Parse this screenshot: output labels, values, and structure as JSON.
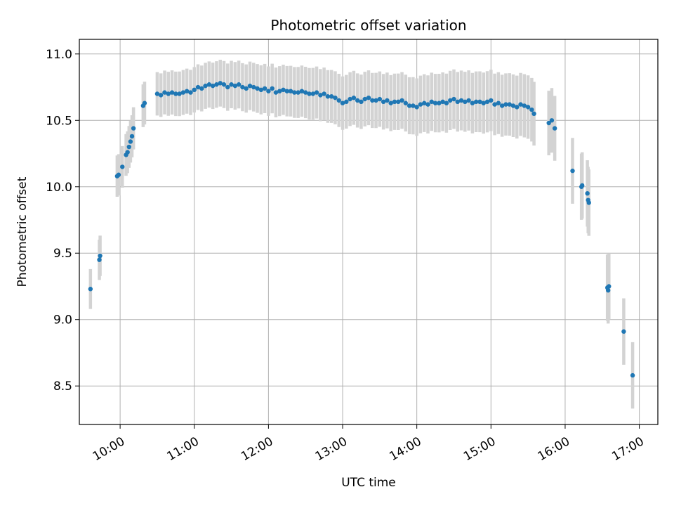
{
  "chart_data": {
    "type": "scatter",
    "title": "Photometric offset variation",
    "xlabel": "UTC time",
    "ylabel": "Photometric offset",
    "x_unit": "hours (UTC)",
    "xlim": [
      9.45,
      17.25
    ],
    "ylim": [
      8.21,
      11.11
    ],
    "x_ticks": [
      {
        "value": 10,
        "label": "10:00"
      },
      {
        "value": 11,
        "label": "11:00"
      },
      {
        "value": 12,
        "label": "12:00"
      },
      {
        "value": 13,
        "label": "13:00"
      },
      {
        "value": 14,
        "label": "14:00"
      },
      {
        "value": 15,
        "label": "15:00"
      },
      {
        "value": 16,
        "label": "16:00"
      },
      {
        "value": 17,
        "label": "17:00"
      }
    ],
    "y_ticks": [
      {
        "value": 8.5,
        "label": "8.5"
      },
      {
        "value": 9.0,
        "label": "9.0"
      },
      {
        "value": 9.5,
        "label": "9.5"
      },
      {
        "value": 10.0,
        "label": "10.0"
      },
      {
        "value": 10.5,
        "label": "10.5"
      },
      {
        "value": 11.0,
        "label": "11.0"
      }
    ],
    "grid": true,
    "colors": {
      "points": "#1f77b4",
      "errorbars": "#d3d3d3",
      "grid": "#b0b0b0"
    },
    "error_half_width_range": [
      0.15,
      0.25
    ],
    "series": [
      {
        "points": [
          [
            9.6,
            9.23
          ],
          [
            9.72,
            9.45
          ],
          [
            9.73,
            9.48
          ],
          [
            9.96,
            10.08
          ],
          [
            9.98,
            10.09
          ],
          [
            10.03,
            10.15
          ],
          [
            10.08,
            10.24
          ],
          [
            10.1,
            10.26
          ],
          [
            10.12,
            10.3
          ],
          [
            10.14,
            10.34
          ],
          [
            10.16,
            10.38
          ],
          [
            10.18,
            10.44
          ],
          [
            10.31,
            10.61
          ],
          [
            10.33,
            10.63
          ],
          [
            10.5,
            10.7
          ],
          [
            10.55,
            10.69
          ],
          [
            10.6,
            10.71
          ],
          [
            10.65,
            10.7
          ],
          [
            10.7,
            10.71
          ],
          [
            10.75,
            10.7
          ],
          [
            10.8,
            10.7
          ],
          [
            10.85,
            10.71
          ],
          [
            10.9,
            10.72
          ],
          [
            10.95,
            10.71
          ],
          [
            11.0,
            10.73
          ],
          [
            11.05,
            10.75
          ],
          [
            11.1,
            10.74
          ],
          [
            11.15,
            10.76
          ],
          [
            11.2,
            10.77
          ],
          [
            11.25,
            10.76
          ],
          [
            11.3,
            10.77
          ],
          [
            11.35,
            10.78
          ],
          [
            11.4,
            10.77
          ],
          [
            11.45,
            10.75
          ],
          [
            11.5,
            10.77
          ],
          [
            11.55,
            10.76
          ],
          [
            11.6,
            10.77
          ],
          [
            11.65,
            10.75
          ],
          [
            11.7,
            10.74
          ],
          [
            11.75,
            10.76
          ],
          [
            11.8,
            10.75
          ],
          [
            11.85,
            10.74
          ],
          [
            11.9,
            10.73
          ],
          [
            11.95,
            10.74
          ],
          [
            12.0,
            10.72
          ],
          [
            12.05,
            10.74
          ],
          [
            12.1,
            10.71
          ],
          [
            12.15,
            10.72
          ],
          [
            12.2,
            10.73
          ],
          [
            12.25,
            10.72
          ],
          [
            12.3,
            10.72
          ],
          [
            12.35,
            10.71
          ],
          [
            12.4,
            10.71
          ],
          [
            12.45,
            10.72
          ],
          [
            12.5,
            10.71
          ],
          [
            12.55,
            10.7
          ],
          [
            12.6,
            10.7
          ],
          [
            12.65,
            10.71
          ],
          [
            12.7,
            10.69
          ],
          [
            12.75,
            10.7
          ],
          [
            12.8,
            10.68
          ],
          [
            12.85,
            10.68
          ],
          [
            12.9,
            10.67
          ],
          [
            12.95,
            10.65
          ],
          [
            13.0,
            10.63
          ],
          [
            13.05,
            10.64
          ],
          [
            13.1,
            10.66
          ],
          [
            13.15,
            10.67
          ],
          [
            13.2,
            10.65
          ],
          [
            13.25,
            10.64
          ],
          [
            13.3,
            10.66
          ],
          [
            13.35,
            10.67
          ],
          [
            13.4,
            10.65
          ],
          [
            13.45,
            10.65
          ],
          [
            13.5,
            10.66
          ],
          [
            13.55,
            10.64
          ],
          [
            13.6,
            10.65
          ],
          [
            13.65,
            10.63
          ],
          [
            13.7,
            10.64
          ],
          [
            13.75,
            10.64
          ],
          [
            13.8,
            10.65
          ],
          [
            13.85,
            10.63
          ],
          [
            13.9,
            10.61
          ],
          [
            13.95,
            10.61
          ],
          [
            14.0,
            10.6
          ],
          [
            14.05,
            10.62
          ],
          [
            14.1,
            10.63
          ],
          [
            14.15,
            10.62
          ],
          [
            14.2,
            10.64
          ],
          [
            14.25,
            10.63
          ],
          [
            14.3,
            10.63
          ],
          [
            14.35,
            10.64
          ],
          [
            14.4,
            10.63
          ],
          [
            14.45,
            10.65
          ],
          [
            14.5,
            10.66
          ],
          [
            14.55,
            10.64
          ],
          [
            14.6,
            10.65
          ],
          [
            14.65,
            10.64
          ],
          [
            14.7,
            10.65
          ],
          [
            14.75,
            10.63
          ],
          [
            14.8,
            10.64
          ],
          [
            14.85,
            10.64
          ],
          [
            14.9,
            10.63
          ],
          [
            14.95,
            10.64
          ],
          [
            15.0,
            10.65
          ],
          [
            15.05,
            10.62
          ],
          [
            15.1,
            10.63
          ],
          [
            15.15,
            10.61
          ],
          [
            15.2,
            10.62
          ],
          [
            15.25,
            10.62
          ],
          [
            15.3,
            10.61
          ],
          [
            15.35,
            10.6
          ],
          [
            15.4,
            10.62
          ],
          [
            15.45,
            10.61
          ],
          [
            15.5,
            10.6
          ],
          [
            15.55,
            10.58
          ],
          [
            15.58,
            10.55
          ],
          [
            15.78,
            10.48
          ],
          [
            15.82,
            10.5
          ],
          [
            15.86,
            10.44
          ],
          [
            16.1,
            10.12
          ],
          [
            16.22,
            10.0
          ],
          [
            16.23,
            10.01
          ],
          [
            16.3,
            9.95
          ],
          [
            16.31,
            9.9
          ],
          [
            16.32,
            9.88
          ],
          [
            16.57,
            9.24
          ],
          [
            16.58,
            9.22
          ],
          [
            16.59,
            9.25
          ],
          [
            16.79,
            8.91
          ],
          [
            16.91,
            8.58
          ]
        ]
      }
    ]
  }
}
